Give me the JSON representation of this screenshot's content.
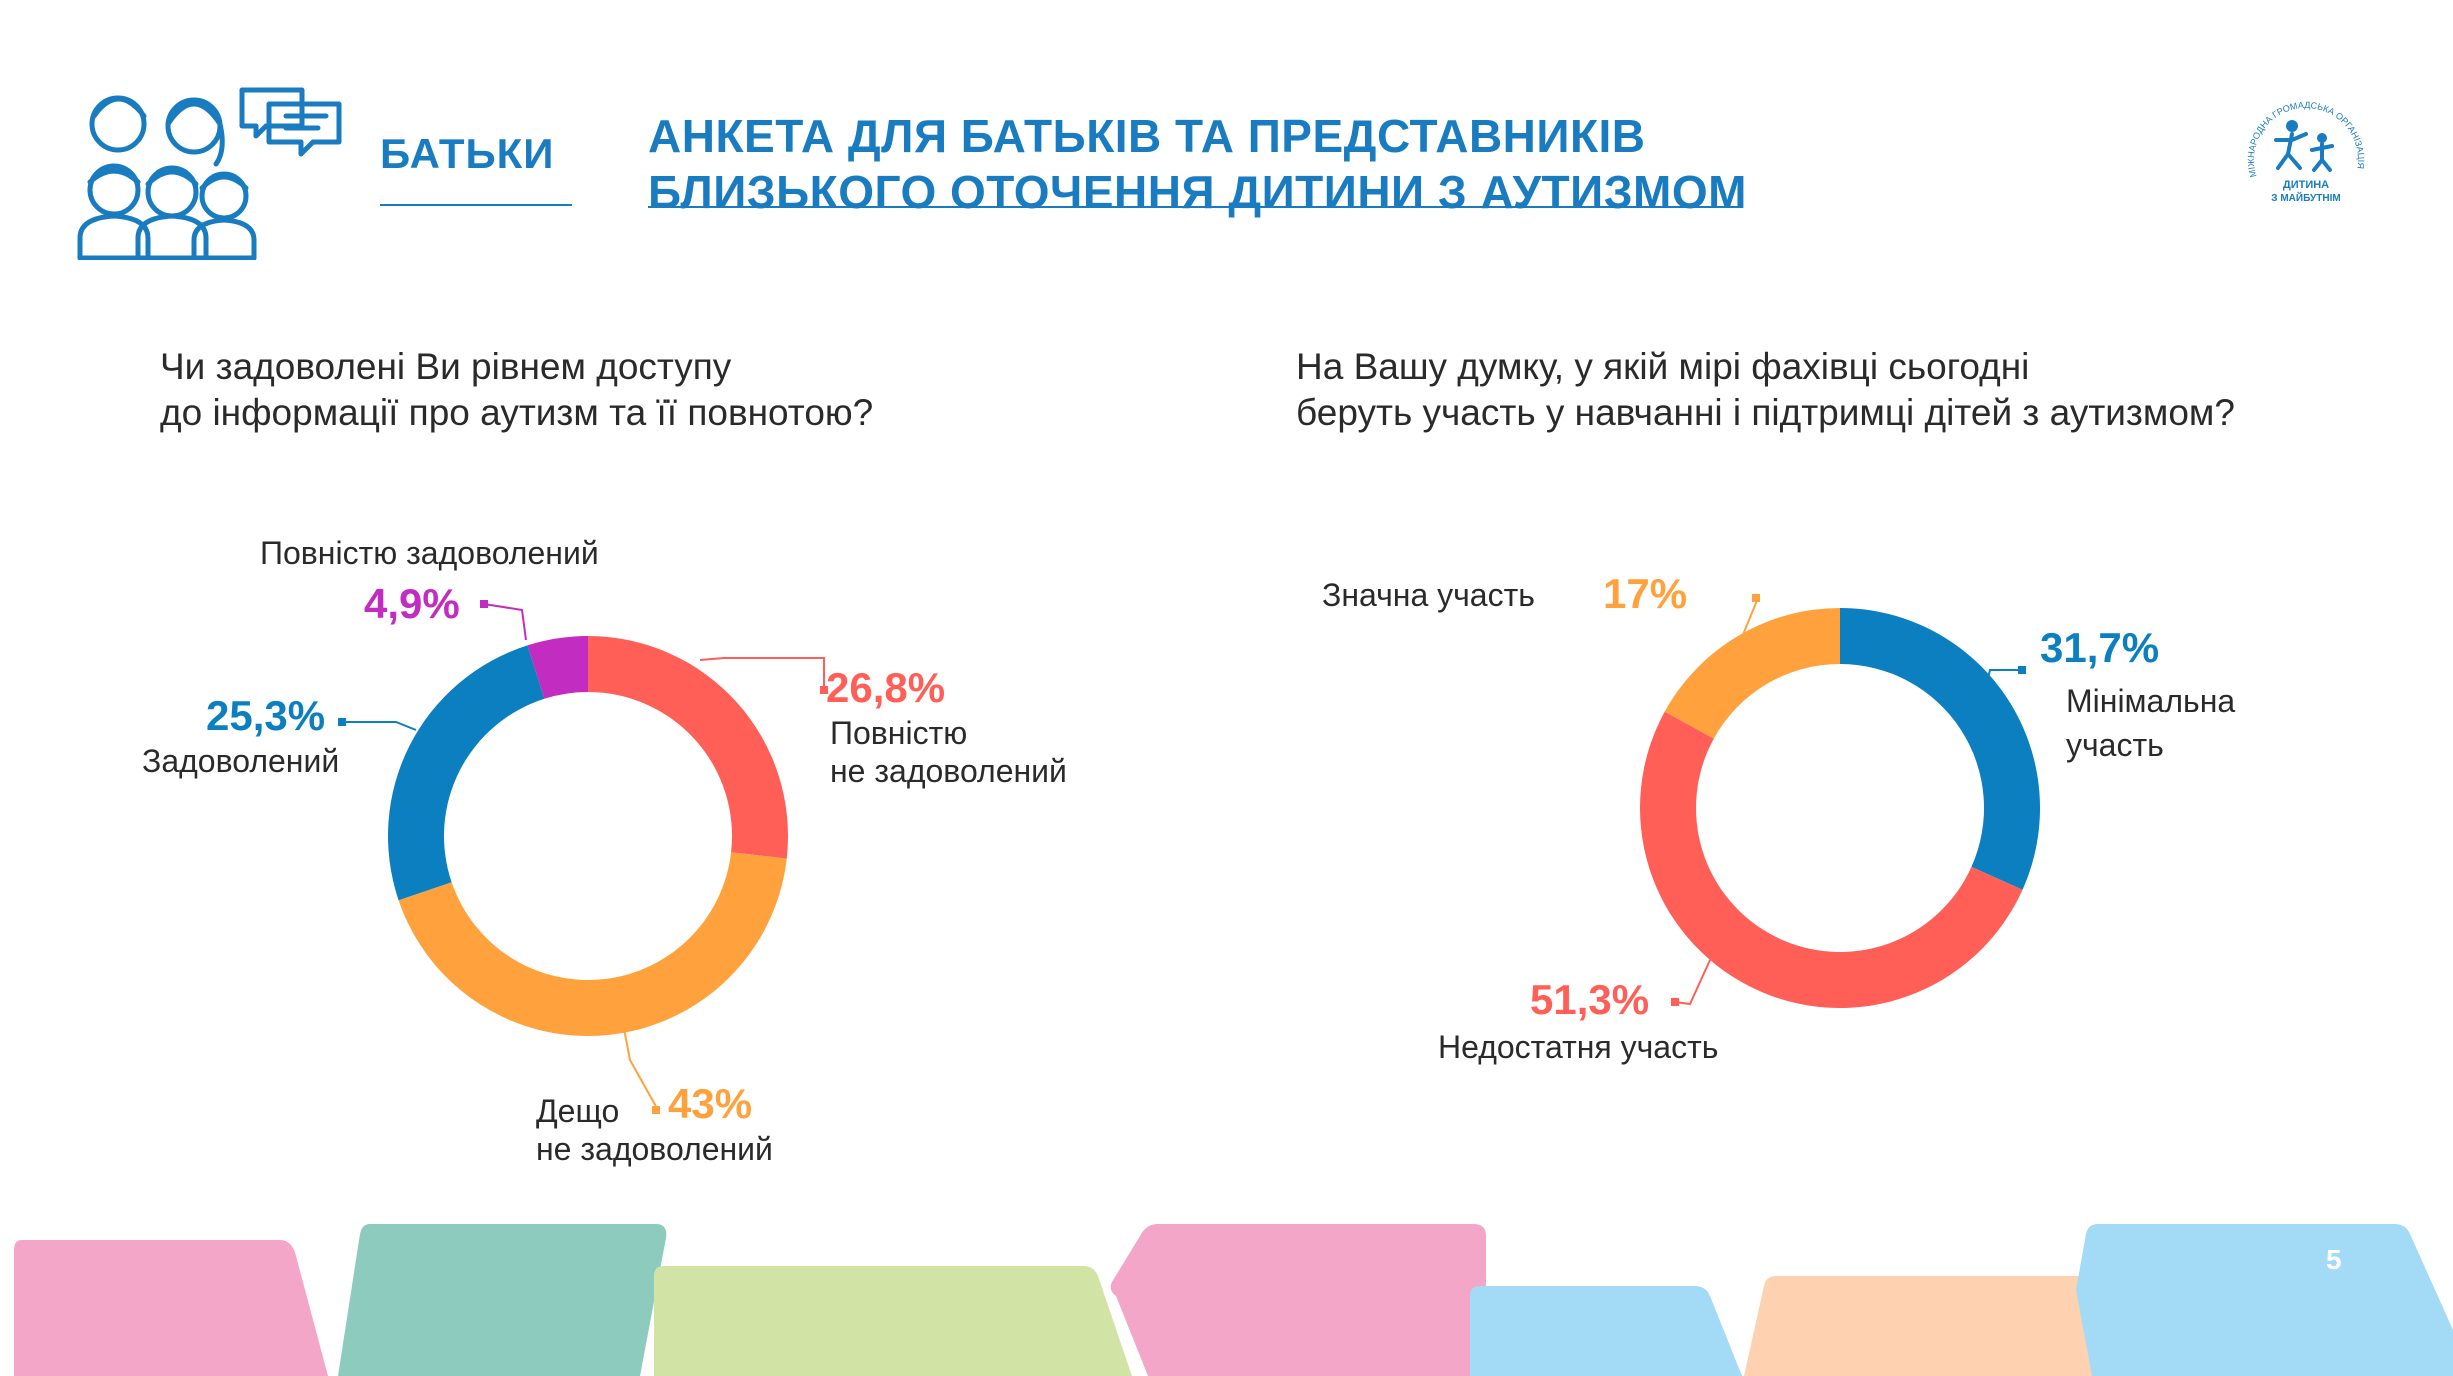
{
  "header": {
    "section_label": "БАТЬКИ",
    "title_line1": "АНКЕТА ДЛЯ БАТЬКІВ ТА ПРЕДСТАВНИКІВ",
    "title_line2": "БЛИЗЬКОГО ОТОЧЕННЯ ДИТИНИ З АУТИЗМОМ",
    "header_icon": "family-chat-icon",
    "logo": {
      "icon": "organization-logo-icon",
      "arc_text": "МІЖНАРОДНА ГРОМАДСЬКА ОРГАНІЗАЦІЯ",
      "name_line1": "ДИТИНА",
      "name_line2": "З МАЙБУТНІМ"
    }
  },
  "questions": {
    "q1_line1": "Чи задоволені Ви рівнем доступу",
    "q1_line2": "до інформації про аутизм та її повнотою?",
    "q2_line1": "На Вашу думку, у якій мірі фахівці сьогодні",
    "q2_line2": "беруть участь у навчанні і підтримці дітей з аутизмом?"
  },
  "chart_data": [
    {
      "type": "pie",
      "donut": true,
      "segments": [
        {
          "label_line1": "Повністю",
          "label_line2": "не задоволений",
          "value": 26.8,
          "value_label": "26,8%",
          "color": "#ff5f57"
        },
        {
          "label_line1": "Дещо",
          "label_line2": "не задоволений",
          "value": 43,
          "value_label": "43%",
          "color": "#ffa23e"
        },
        {
          "label_line1": "Задоволений",
          "label_line2": "",
          "value": 25.3,
          "value_label": "25,3%",
          "color": "#0b7fc0"
        },
        {
          "label_line1": "Повністю задоволений",
          "label_line2": "",
          "value": 4.9,
          "value_label": "4,9%",
          "color": "#c22cc0"
        }
      ]
    },
    {
      "type": "pie",
      "donut": true,
      "segments": [
        {
          "label_line1": "Мінімальна",
          "label_line2": "участь",
          "value": 31.7,
          "value_label": "31,7%",
          "color": "#0b7fc0"
        },
        {
          "label_line1": "Недостатня участь",
          "label_line2": "",
          "value": 51.3,
          "value_label": "51,3%",
          "color": "#ff5f57"
        },
        {
          "label_line1": "Значна  участь",
          "label_line2": "",
          "value": 17,
          "value_label": "17%",
          "color": "#ffa23e"
        }
      ]
    }
  ],
  "footer": {
    "page_number": "5",
    "shape_colors": [
      "#f3a6c8",
      "#8ecbbf",
      "#d2e4a5",
      "#f3a6c8",
      "#a3daf5",
      "#fed2b0",
      "#a3daf5"
    ]
  }
}
